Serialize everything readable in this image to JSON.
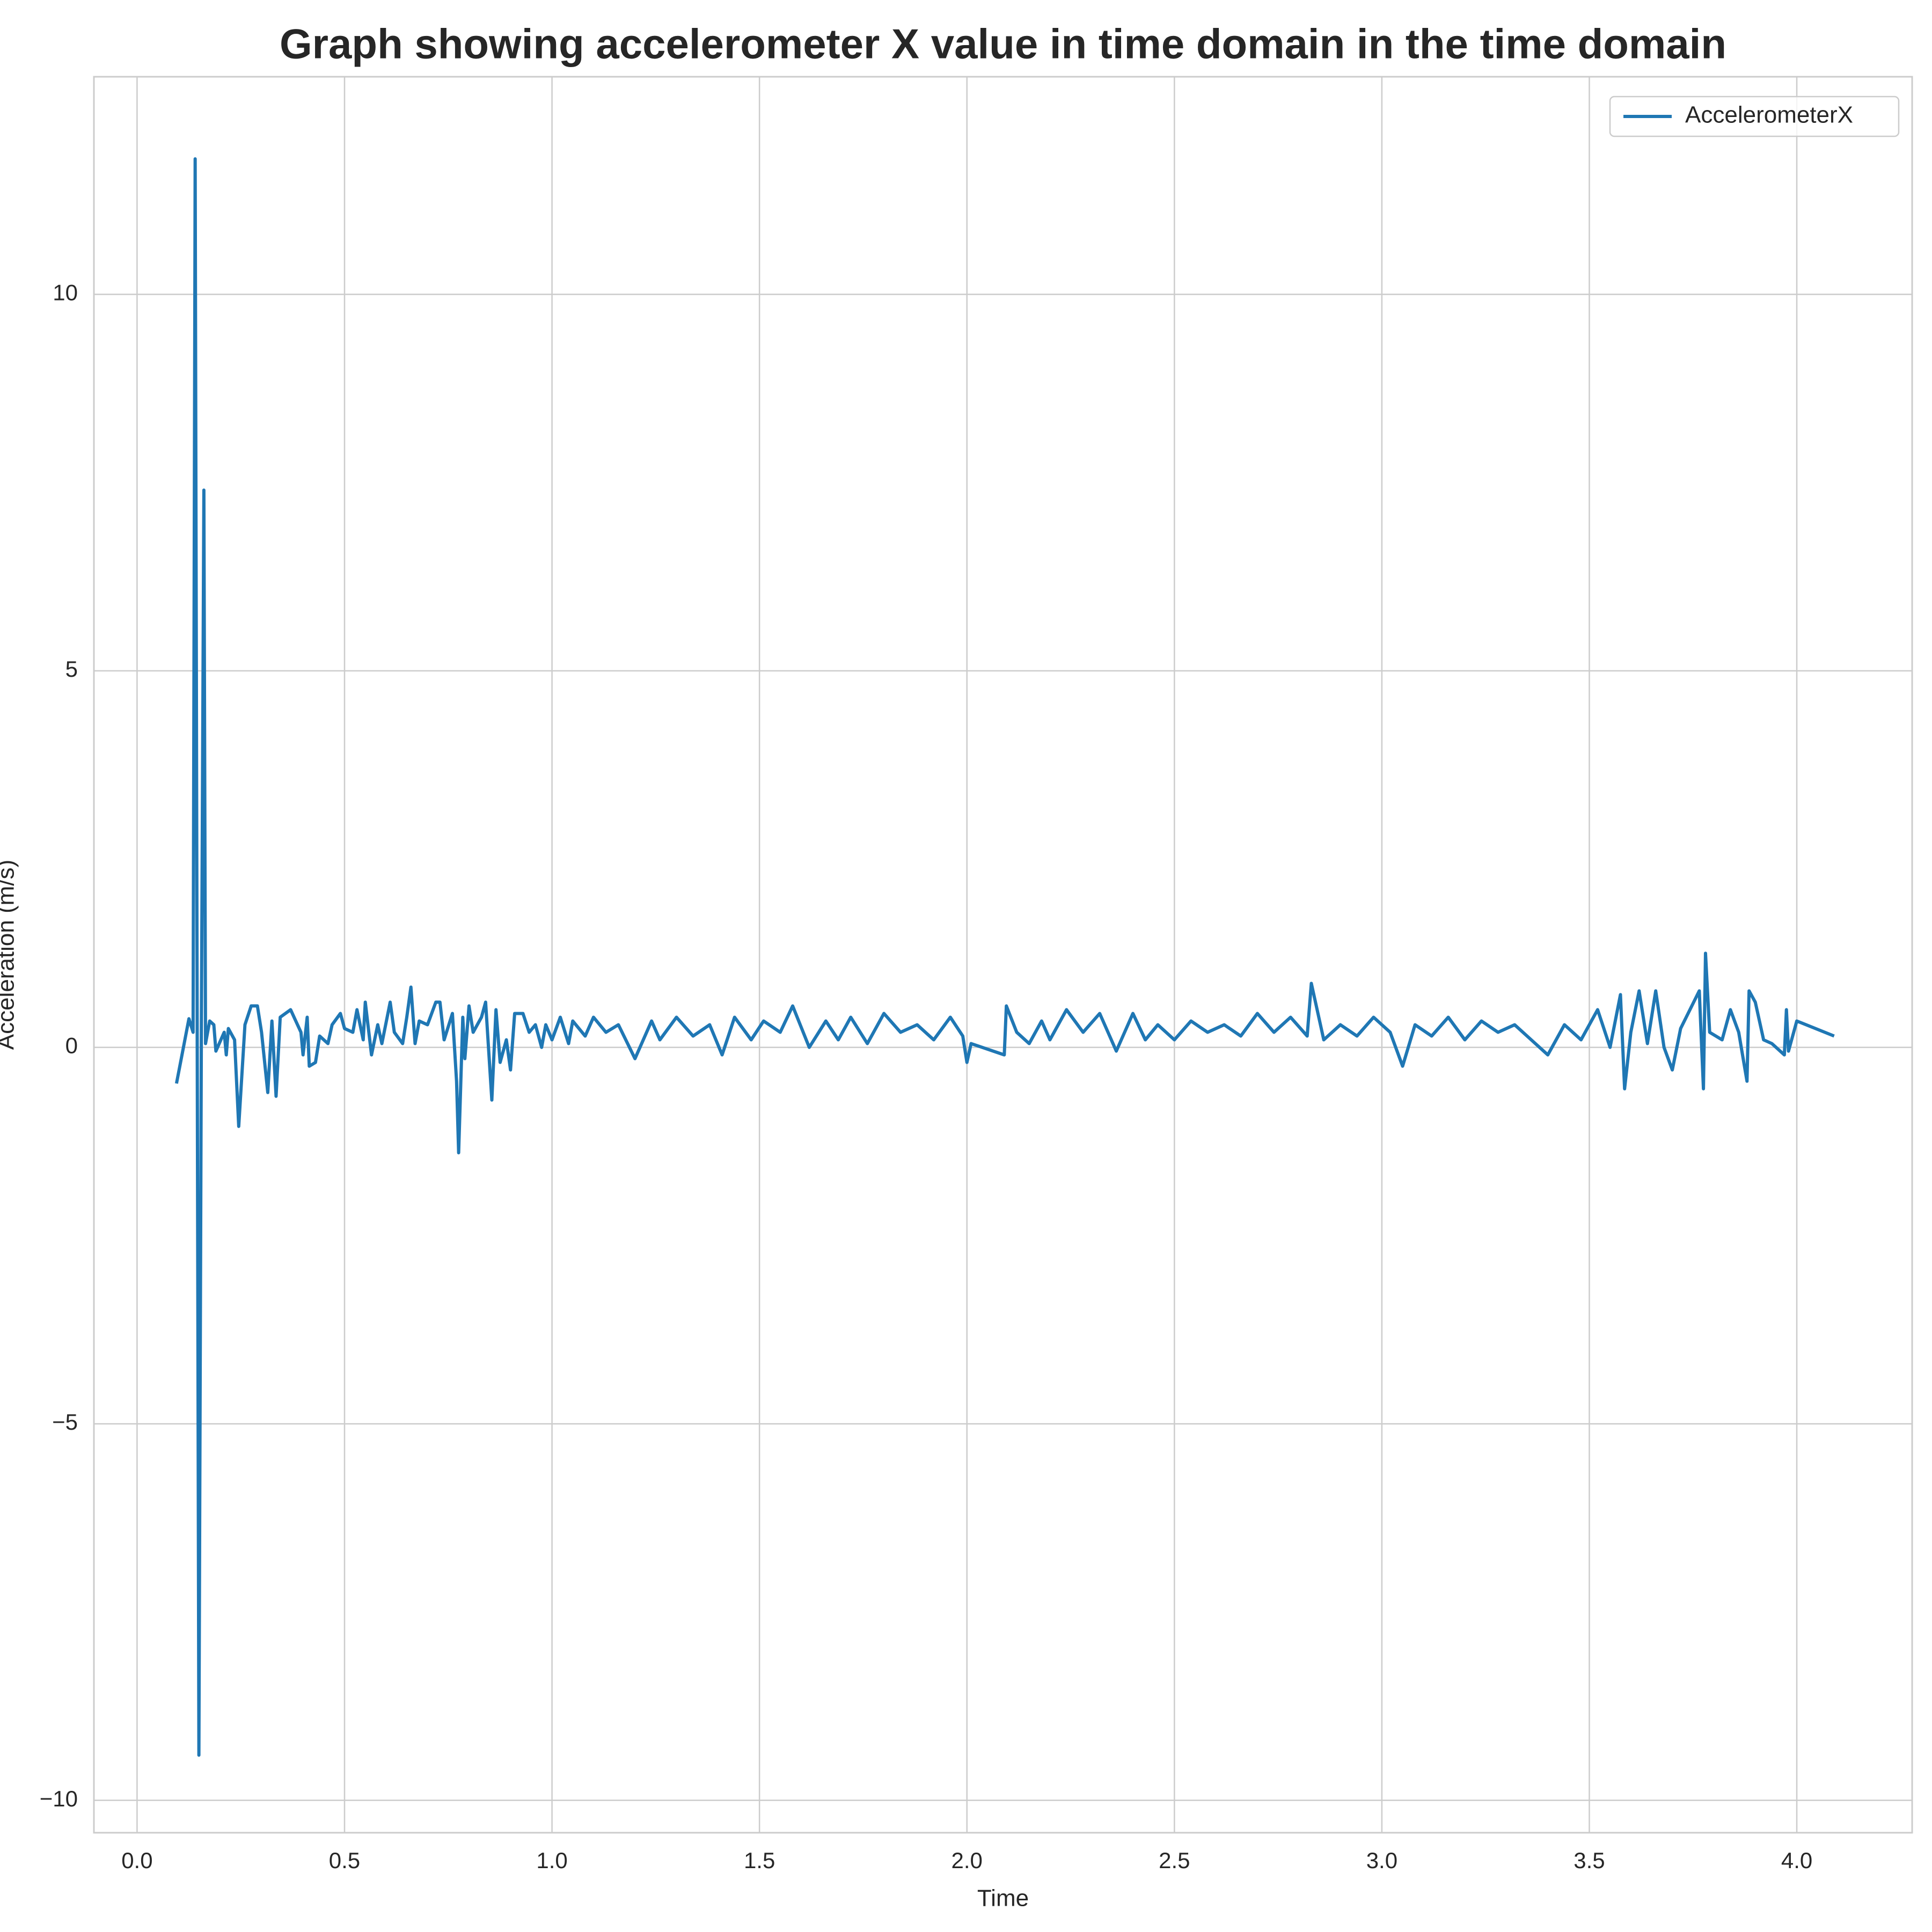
{
  "chart_data": {
    "type": "line",
    "title": "Graph showing accelerometer X value in time domain in the time domain",
    "x_label": "Time",
    "y_label": "Acceleration (m/s)",
    "x": [
      0.095,
      0.125,
      0.135,
      0.14,
      0.149,
      0.155,
      0.161,
      0.165,
      0.175,
      0.185,
      0.19,
      0.21,
      0.215,
      0.22,
      0.235,
      0.245,
      0.26,
      0.275,
      0.29,
      0.3,
      0.315,
      0.325,
      0.335,
      0.345,
      0.37,
      0.395,
      0.4,
      0.41,
      0.415,
      0.43,
      0.44,
      0.46,
      0.47,
      0.49,
      0.5,
      0.52,
      0.53,
      0.545,
      0.55,
      0.565,
      0.58,
      0.59,
      0.61,
      0.62,
      0.64,
      0.65,
      0.66,
      0.67,
      0.68,
      0.7,
      0.72,
      0.73,
      0.74,
      0.76,
      0.77,
      0.775,
      0.785,
      0.79,
      0.8,
      0.81,
      0.83,
      0.84,
      0.855,
      0.865,
      0.875,
      0.89,
      0.9,
      0.91,
      0.93,
      0.945,
      0.96,
      0.975,
      0.985,
      1.0,
      1.02,
      1.04,
      1.05,
      1.08,
      1.1,
      1.13,
      1.16,
      1.2,
      1.24,
      1.26,
      1.3,
      1.34,
      1.38,
      1.41,
      1.44,
      1.48,
      1.51,
      1.55,
      1.58,
      1.62,
      1.66,
      1.69,
      1.72,
      1.76,
      1.8,
      1.84,
      1.88,
      1.92,
      1.96,
      1.99,
      2.0,
      2.01,
      2.09,
      2.095,
      2.12,
      2.15,
      2.18,
      2.2,
      2.24,
      2.28,
      2.32,
      2.36,
      2.4,
      2.43,
      2.46,
      2.5,
      2.54,
      2.58,
      2.62,
      2.66,
      2.7,
      2.74,
      2.78,
      2.82,
      2.83,
      2.86,
      2.9,
      2.94,
      2.98,
      3.02,
      3.05,
      3.08,
      3.12,
      3.16,
      3.2,
      3.24,
      3.28,
      3.32,
      3.36,
      3.4,
      3.44,
      3.48,
      3.52,
      3.55,
      3.575,
      3.585,
      3.6,
      3.62,
      3.64,
      3.66,
      3.68,
      3.7,
      3.72,
      3.765,
      3.775,
      3.78,
      3.79,
      3.82,
      3.84,
      3.86,
      3.88,
      3.885,
      3.9,
      3.92,
      3.94,
      3.97,
      3.975,
      3.98,
      4.0,
      4.09
    ],
    "series": [
      {
        "name": "AccelerometerX",
        "color": "#1f77b4",
        "values": [
          -0.48,
          0.38,
          0.2,
          11.8,
          -9.4,
          0.3,
          7.4,
          0.05,
          0.35,
          0.3,
          -0.05,
          0.2,
          -0.1,
          0.25,
          0.1,
          -1.05,
          0.3,
          0.55,
          0.55,
          0.2,
          -0.6,
          0.35,
          -0.65,
          0.4,
          0.5,
          0.2,
          -0.1,
          0.4,
          -0.25,
          -0.2,
          0.15,
          0.05,
          0.3,
          0.45,
          0.25,
          0.2,
          0.5,
          0.1,
          0.6,
          -0.1,
          0.3,
          0.05,
          0.6,
          0.2,
          0.05,
          0.4,
          0.8,
          0.05,
          0.35,
          0.3,
          0.6,
          0.6,
          0.1,
          0.45,
          -0.45,
          -1.4,
          0.4,
          -0.15,
          0.55,
          0.2,
          0.4,
          0.6,
          -0.7,
          0.5,
          -0.2,
          0.1,
          -0.3,
          0.45,
          0.45,
          0.2,
          0.3,
          0.0,
          0.3,
          0.1,
          0.4,
          0.05,
          0.35,
          0.15,
          0.4,
          0.2,
          0.3,
          -0.15,
          0.35,
          0.1,
          0.4,
          0.15,
          0.3,
          -0.1,
          0.4,
          0.1,
          0.35,
          0.2,
          0.55,
          0.0,
          0.35,
          0.1,
          0.4,
          0.05,
          0.45,
          0.2,
          0.3,
          0.1,
          0.4,
          0.15,
          -0.2,
          0.05,
          -0.1,
          0.55,
          0.2,
          0.05,
          0.35,
          0.1,
          0.5,
          0.2,
          0.45,
          -0.05,
          0.45,
          0.1,
          0.3,
          0.1,
          0.35,
          0.2,
          0.3,
          0.15,
          0.45,
          0.2,
          0.4,
          0.15,
          0.85,
          0.1,
          0.3,
          0.15,
          0.4,
          0.2,
          -0.25,
          0.3,
          0.15,
          0.4,
          0.1,
          0.35,
          0.2,
          0.3,
          0.1,
          -0.1,
          0.3,
          0.1,
          0.5,
          0.0,
          0.7,
          -0.55,
          0.2,
          0.75,
          0.05,
          0.75,
          0.0,
          -0.3,
          0.25,
          0.75,
          -0.55,
          1.25,
          0.2,
          0.1,
          0.5,
          0.2,
          -0.45,
          0.75,
          0.6,
          0.1,
          0.05,
          -0.1,
          0.5,
          -0.05,
          0.35,
          0.15
        ]
      }
    ],
    "xlim": [
      -0.104,
      4.278
    ],
    "ylim": [
      -10.43,
      12.89
    ],
    "xticks": [
      {
        "value": 0,
        "label": "0.0"
      },
      0.5,
      {
        "value": 1,
        "label": "1.0"
      },
      1.5,
      {
        "value": 2,
        "label": "2.0"
      },
      2.5,
      {
        "value": 3,
        "label": "3.0"
      },
      3.5,
      {
        "value": 4,
        "label": "4.0"
      }
    ],
    "yticks": [
      {
        "value": -10,
        "label": "−10"
      },
      {
        "value": -5,
        "label": "−5"
      },
      0,
      5,
      10
    ],
    "grid": true,
    "legend": "upper right"
  }
}
